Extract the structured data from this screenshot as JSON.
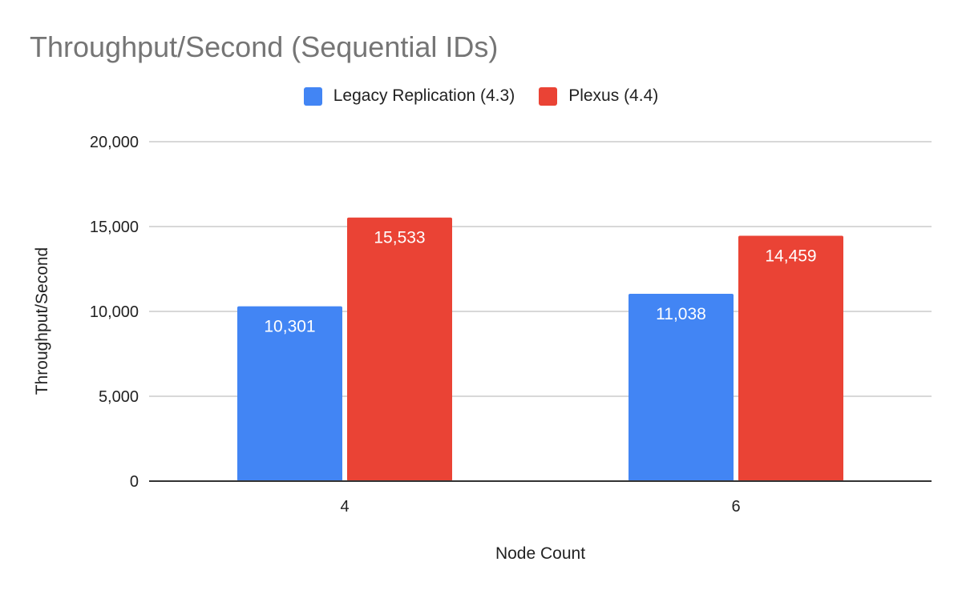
{
  "chart_data": {
    "type": "bar",
    "title": "Throughput/Second (Sequential IDs)",
    "xlabel": "Node Count",
    "ylabel": "Throughput/Second",
    "categories": [
      "4",
      "6"
    ],
    "series": [
      {
        "name": "Legacy Replication (4.3)",
        "values": [
          10301,
          11038
        ],
        "labels": [
          "10,301",
          "11,038"
        ],
        "color": "#4285F4"
      },
      {
        "name": "Plexus (4.4)",
        "values": [
          15533,
          14459
        ],
        "labels": [
          "15,533",
          "14,459"
        ],
        "color": "#EA4335"
      }
    ],
    "ylim": [
      0,
      20000
    ],
    "yticks": [
      0,
      5000,
      10000,
      15000,
      20000
    ],
    "ytick_labels": [
      "0",
      "5,000",
      "10,000",
      "15,000",
      "20,000"
    ],
    "grid": true,
    "legend_position": "top",
    "data_labels": "inside-top",
    "colors": {
      "title": "#757575",
      "grid": "#cccccc",
      "axis": "#333333",
      "text": "#222222",
      "data_label": "#ffffff"
    }
  }
}
